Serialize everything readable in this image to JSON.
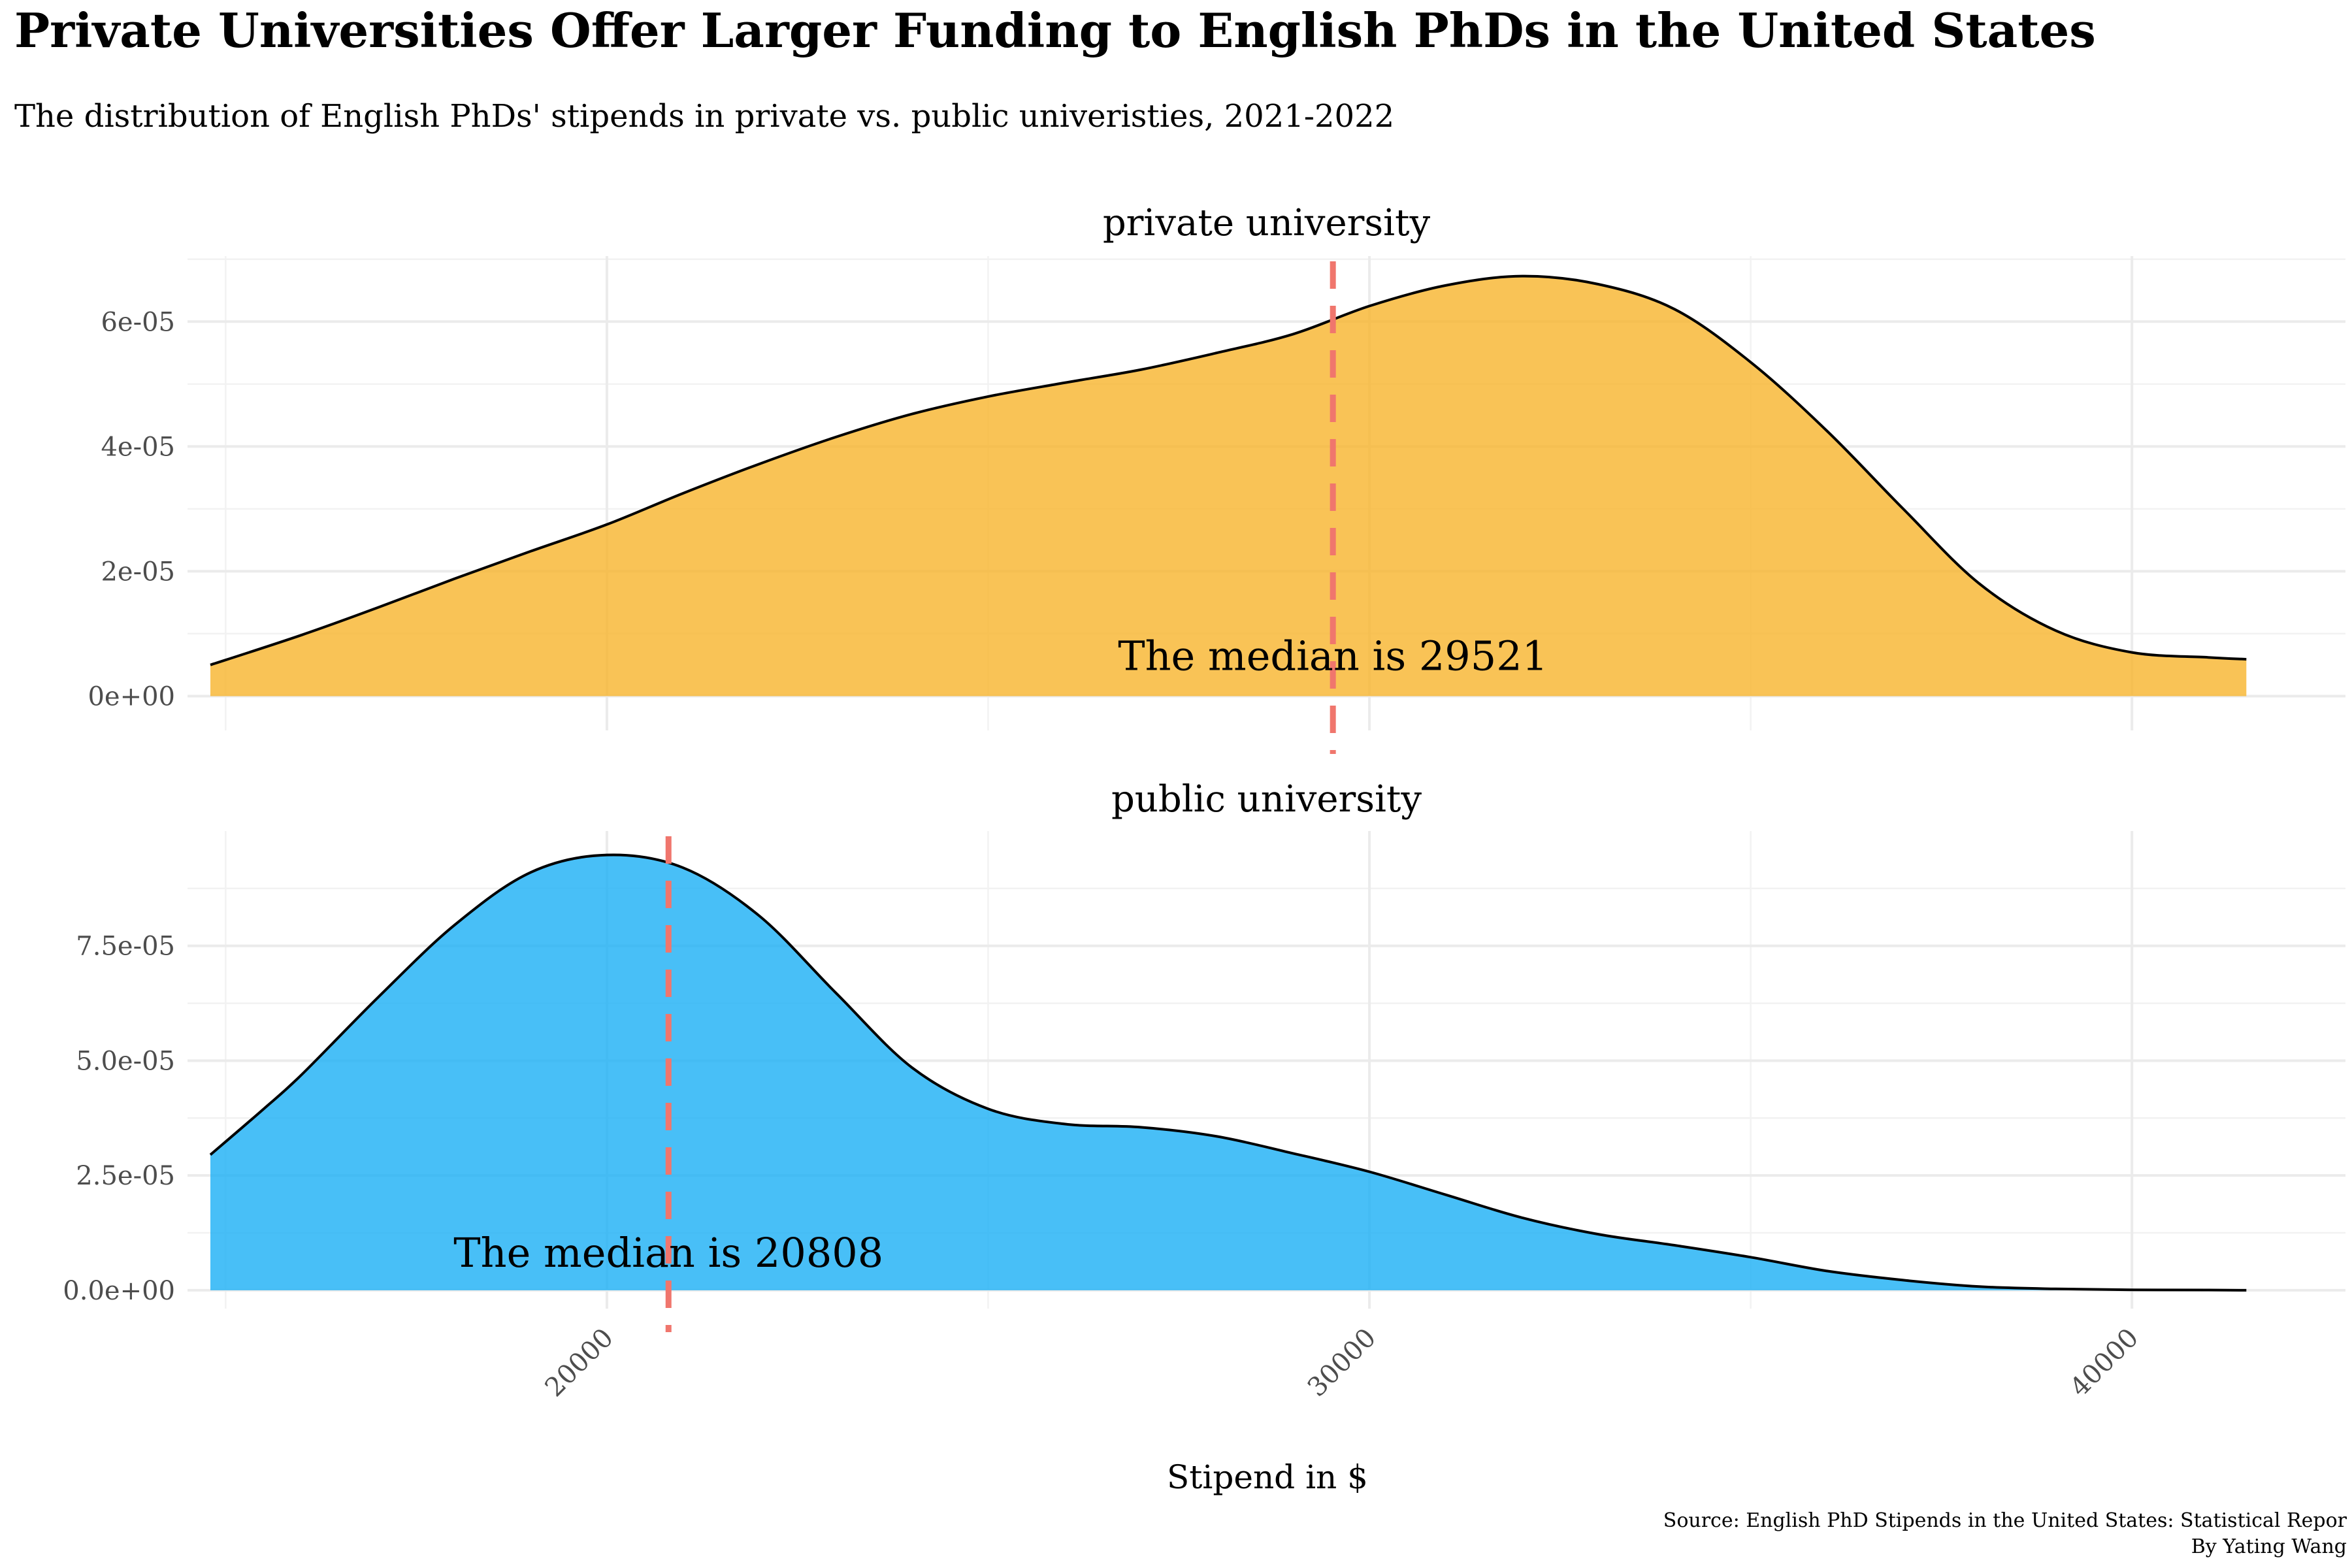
{
  "title": "Private Universities Offer Larger Funding to English PhDs in the United States",
  "subtitle": "The distribution of English PhDs' stipends in private vs. public univeristies, 2021-2022",
  "xlabel": "Stipend in $",
  "caption_line1": "Source: English PhD Stipends in the United States: Statistical Repor",
  "caption_line2": "By Yating Wang",
  "colors": {
    "private_fill": "#F7B42C",
    "public_fill": "#1AAFF5",
    "median_line": "#F0766D",
    "outline": "#000000"
  },
  "chart_data": {
    "type": "area",
    "x_ticks": [
      "20000",
      "30000",
      "40000"
    ],
    "xlim": [
      14500,
      42800
    ],
    "panels": [
      {
        "name": "private university",
        "color": "#F7B42C",
        "median": 29521,
        "median_label": "The median is 29521",
        "ylim": [
          -5.5e-06,
          7.05e-05
        ],
        "y_ticks": [
          "0e+00",
          "2e-05",
          "4e-05",
          "6e-05"
        ],
        "y_tick_values": [
          0,
          2e-05,
          4e-05,
          6e-05
        ],
        "x": [
          14800,
          16000,
          17000,
          18000,
          19000,
          20000,
          21000,
          22000,
          23000,
          24000,
          25000,
          26000,
          27000,
          28000,
          29000,
          30000,
          31000,
          32000,
          33000,
          34000,
          35000,
          36000,
          37000,
          38000,
          39000,
          40000,
          41000,
          41500
        ],
        "y": [
          5e-06,
          9.8e-06,
          1.42e-05,
          1.88e-05,
          2.32e-05,
          2.75e-05,
          3.25e-05,
          3.72e-05,
          4.15e-05,
          4.52e-05,
          4.8e-05,
          5.02e-05,
          5.23e-05,
          5.5e-05,
          5.8e-05,
          6.25e-05,
          6.58e-05,
          6.73e-05,
          6.6e-05,
          6.2e-05,
          5.35e-05,
          4.25e-05,
          3e-05,
          1.8e-05,
          1.05e-05,
          7e-06,
          6.2e-06,
          5.9e-06
        ]
      },
      {
        "name": "public university",
        "color": "#1AAFF5",
        "median": 20808,
        "median_label": "The median is 20808",
        "ylim": [
          -4e-06,
          0.0001
        ],
        "y_ticks": [
          "0.0e+00",
          "2.5e-05",
          "5.0e-05",
          "7.5e-05"
        ],
        "y_tick_values": [
          0,
          2.5e-05,
          5e-05,
          7.5e-05
        ],
        "x": [
          14800,
          15500,
          16000,
          17000,
          18000,
          19000,
          20000,
          21000,
          22000,
          23000,
          24000,
          25000,
          26000,
          27000,
          28000,
          29000,
          30000,
          31000,
          32000,
          33000,
          34000,
          35000,
          36000,
          37000,
          38000,
          39000,
          40000,
          41000,
          41500
        ],
        "y": [
          2.95e-05,
          3.95e-05,
          4.7e-05,
          6.38e-05,
          7.95e-05,
          9.1e-05,
          9.48e-05,
          9.2e-05,
          8.15e-05,
          6.48e-05,
          4.85e-05,
          3.95e-05,
          3.62e-05,
          3.55e-05,
          3.35e-05,
          2.98e-05,
          2.58e-05,
          2.08e-05,
          1.58e-05,
          1.22e-05,
          9.8e-06,
          7.2e-06,
          4.2e-06,
          2.2e-06,
          8e-07,
          3e-07,
          1e-07,
          5e-08,
          0.0
        ]
      }
    ]
  }
}
